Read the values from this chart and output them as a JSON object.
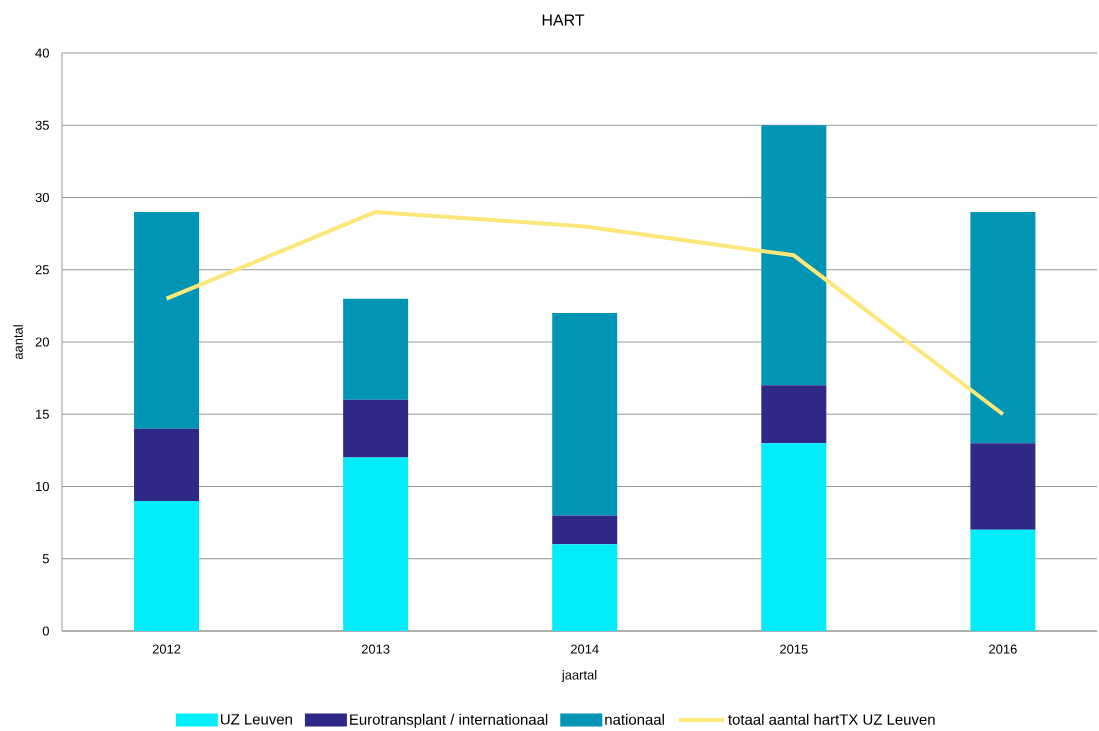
{
  "chart_data": {
    "type": "bar",
    "title": "HART",
    "xlabel": "jaartal",
    "ylabel": "aantal",
    "categories": [
      "2012",
      "2013",
      "2014",
      "2015",
      "2016"
    ],
    "stacked": true,
    "series": [
      {
        "name": "UZ Leuven",
        "color": "#00edf7",
        "values": [
          9,
          12,
          6,
          13,
          7
        ]
      },
      {
        "name": "Eurotransplant / internationaal",
        "color": "#2e2886",
        "values": [
          5,
          4,
          2,
          4,
          6
        ]
      },
      {
        "name": "nationaal",
        "color": "#0095b4",
        "values": [
          15,
          7,
          14,
          18,
          16
        ]
      },
      {
        "name": "totaal aantal hartTX UZ Leuven",
        "type": "line",
        "color": "#fbe77a",
        "values": [
          23,
          29,
          28,
          26,
          15
        ]
      }
    ],
    "ylim": [
      0,
      40
    ],
    "yticks": [
      0,
      5,
      10,
      15,
      20,
      25,
      30,
      35,
      40
    ],
    "grid": "y",
    "legend": "bottom",
    "marker": "none",
    "line_style": "solid"
  }
}
